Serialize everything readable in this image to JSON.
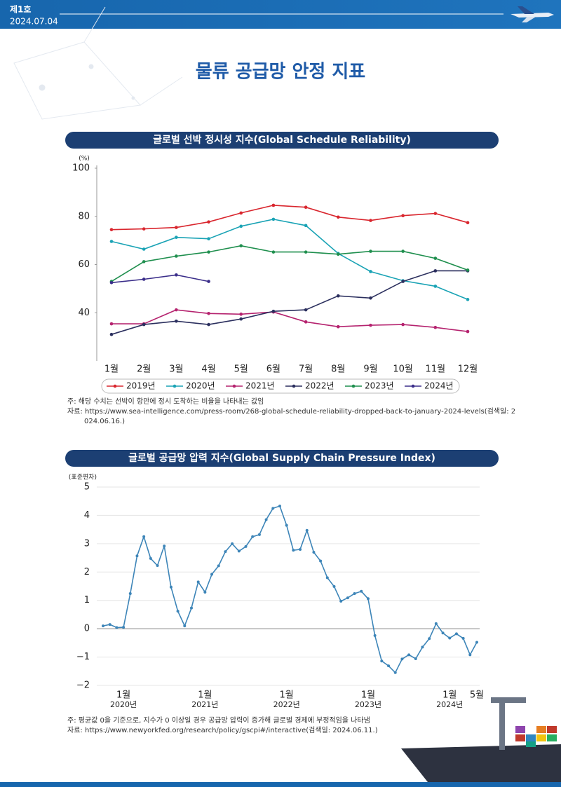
{
  "header": {
    "issue": "제1호",
    "date": "2024.07.04"
  },
  "title": "물류 공급망 안정 지표",
  "chart_data": [
    {
      "type": "line",
      "title": "글로벌 선박 정시성 지수(Global Schedule Reliability)",
      "y_label": "(%)",
      "categories": [
        "1월",
        "2월",
        "3월",
        "4월",
        "5월",
        "6월",
        "7월",
        "8월",
        "9월",
        "10월",
        "11월",
        "12월"
      ],
      "ylim": [
        20,
        100
      ],
      "yticks": [
        40,
        60,
        80,
        100
      ],
      "grid": false,
      "legend": "bottom",
      "markers": true,
      "series": [
        {
          "name": "2019년",
          "color": "#d9262e",
          "values": [
            74.5,
            74.8,
            75.4,
            77.7,
            81.4,
            84.6,
            83.8,
            79.7,
            78.3,
            80.3,
            81.2,
            77.4
          ]
        },
        {
          "name": "2020년",
          "color": "#1aa3b5",
          "values": [
            69.6,
            66.4,
            71.3,
            70.7,
            75.9,
            78.8,
            76.2,
            64.6,
            57.1,
            53.3,
            51.0,
            45.5
          ]
        },
        {
          "name": "2021년",
          "color": "#b5236f",
          "values": [
            35.4,
            35.4,
            41.2,
            39.7,
            39.4,
            40.3,
            36.2,
            34.2,
            34.8,
            35.1,
            33.9,
            32.2
          ]
        },
        {
          "name": "2022년",
          "color": "#2b2f5e",
          "values": [
            31.0,
            35.1,
            36.5,
            35.1,
            37.4,
            40.6,
            41.2,
            47.0,
            46.1,
            53.0,
            57.4,
            57.4
          ]
        },
        {
          "name": "2023년",
          "color": "#1f8f4e",
          "values": [
            53.0,
            61.2,
            63.5,
            65.2,
            67.8,
            65.2,
            65.2,
            64.3,
            65.5,
            65.5,
            62.6,
            57.7
          ]
        },
        {
          "name": "2024년",
          "color": "#3b2e8a",
          "values": [
            52.5,
            53.9,
            55.7,
            53.0,
            null,
            null,
            null,
            null,
            null,
            null,
            null,
            null
          ]
        }
      ],
      "notes": [
        "주: 해당 수치는 선박이 항만에 정시 도착하는 비율을 나타내는 값임",
        "자료: https://www.sea-intelligence.com/press-room/268-global-schedule-reliability-dropped-back-to-january-2024-levels(검색일: 2024.06.16.)"
      ]
    },
    {
      "type": "line",
      "title": "글로벌 공급망 압력 지수(Global Supply Chain Pressure Index)",
      "y_label": "(표준편차)",
      "categories": [
        null,
        null,
        null,
        "1월",
        null,
        null,
        null,
        null,
        null,
        null,
        null,
        null,
        null,
        null,
        null,
        "1월",
        null,
        null,
        null,
        null,
        null,
        null,
        null,
        null,
        null,
        null,
        null,
        "1월",
        null,
        null,
        null,
        null,
        null,
        null,
        null,
        null,
        null,
        null,
        null,
        "1월",
        null,
        null,
        null,
        null,
        null,
        null,
        null,
        null,
        null,
        null,
        null,
        "1월",
        null,
        null,
        null,
        "5월"
      ],
      "category_years": [
        null,
        null,
        null,
        "2020년",
        null,
        null,
        null,
        null,
        null,
        null,
        null,
        null,
        null,
        null,
        null,
        "2021년",
        null,
        null,
        null,
        null,
        null,
        null,
        null,
        null,
        null,
        null,
        null,
        "2022년",
        null,
        null,
        null,
        null,
        null,
        null,
        null,
        null,
        null,
        null,
        null,
        "2023년",
        null,
        null,
        null,
        null,
        null,
        null,
        null,
        null,
        null,
        null,
        null,
        "2024년",
        null,
        null,
        null,
        null
      ],
      "ylim": [
        -2,
        5
      ],
      "yticks": [
        {
          "value": -2,
          "label": "−2"
        },
        {
          "value": -1,
          "label": "−1"
        },
        0,
        1,
        2,
        3,
        4,
        5
      ],
      "grid": true,
      "markers": true,
      "color": "#3d85b8",
      "values": [
        0.1,
        0.15,
        0.04,
        0.05,
        1.24,
        2.57,
        3.25,
        2.48,
        2.23,
        2.92,
        1.47,
        0.62,
        0.1,
        0.73,
        1.65,
        1.29,
        1.92,
        2.22,
        2.72,
        3.0,
        2.74,
        2.9,
        3.25,
        3.32,
        3.85,
        4.25,
        4.33,
        3.65,
        2.77,
        2.8,
        3.47,
        2.7,
        2.39,
        1.8,
        1.49,
        0.97,
        1.09,
        1.24,
        1.32,
        1.06,
        -0.24,
        -1.14,
        -1.31,
        -1.55,
        -1.07,
        -0.92,
        -1.06,
        -0.65,
        -0.35,
        0.18,
        -0.15,
        -0.33,
        -0.18,
        -0.34,
        -0.92,
        -0.48
      ],
      "notes": [
        "주: 평균값 0을 기준으로, 지수가 0 이상일 경우 공급망 압력이 증가해 글로벌 경제에 부정적임을 나타냄",
        "자료: https://www.newyorkfed.org/research/policy/gscpi#/interactive(검색일: 2024.06.11.)"
      ]
    }
  ]
}
